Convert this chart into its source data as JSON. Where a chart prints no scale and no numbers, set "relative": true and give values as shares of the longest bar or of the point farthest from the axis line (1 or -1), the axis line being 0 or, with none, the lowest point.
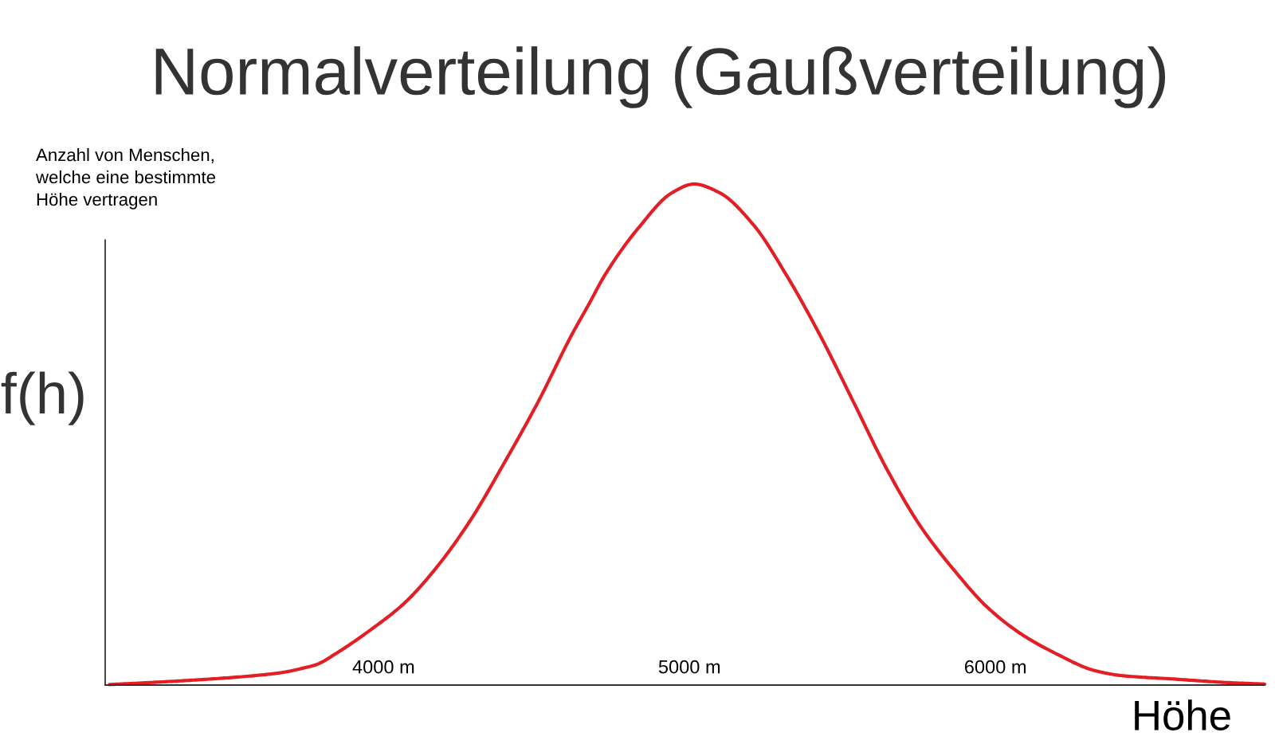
{
  "chart_data": {
    "type": "line",
    "title": "Normalverteilung (Gaußverteilung)",
    "xlabel": "Höhe",
    "ylabel": "f(h)",
    "annotations": [
      "Anzahl von Menschen,\nwelche eine bestimmte\nHöhe vertragen"
    ],
    "relative": true,
    "x": [
      3104,
      3234,
      3408,
      3581,
      3668,
      3738,
      3781,
      3847,
      3957,
      4067,
      4176,
      4286,
      4395,
      4505,
      4615,
      4670,
      4724,
      4834,
      4944,
      5015,
      5097,
      5207,
      5316,
      5426,
      5536,
      5645,
      5755,
      5864,
      5974,
      6084,
      6194,
      6324,
      6411,
      6584,
      6758,
      6880
    ],
    "series": [
      {
        "color": "#e31e24",
        "values": [
          0.001,
          0.005,
          0.011,
          0.019,
          0.025,
          0.034,
          0.041,
          0.064,
          0.11,
          0.163,
          0.237,
          0.331,
          0.444,
          0.565,
          0.699,
          0.759,
          0.819,
          0.913,
          0.983,
          1,
          0.983,
          0.92,
          0.819,
          0.699,
          0.565,
          0.431,
          0.317,
          0.23,
          0.155,
          0.102,
          0.064,
          0.029,
          0.019,
          0.012,
          0.005,
          0.002
        ]
      }
    ],
    "xlim": [
      3090,
      6880
    ],
    "xticks": [
      {
        "value": 4000,
        "label": "4000 m"
      },
      {
        "value": 5000,
        "label": "5000 m"
      },
      {
        "value": 6000,
        "label": "6000 m"
      }
    ],
    "tick_labels": "x",
    "grid": false,
    "marker": "none",
    "line_style": "solid"
  }
}
